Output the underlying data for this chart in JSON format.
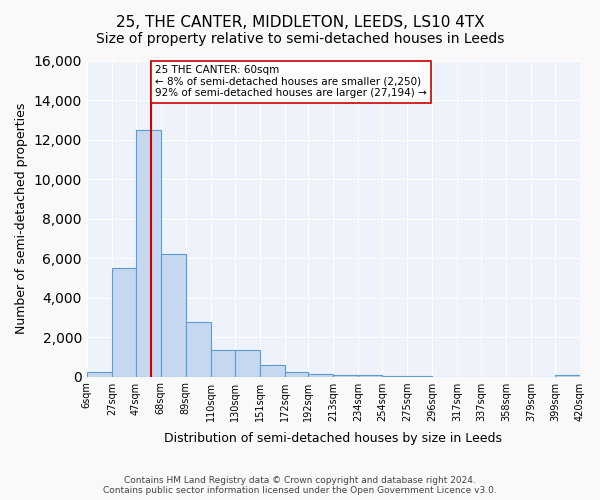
{
  "title": "25, THE CANTER, MIDDLETON, LEEDS, LS10 4TX",
  "subtitle": "Size of property relative to semi-detached houses in Leeds",
  "xlabel": "Distribution of semi-detached houses by size in Leeds",
  "ylabel": "Number of semi-detached properties",
  "footer": "Contains HM Land Registry data © Crown copyright and database right 2024.\nContains public sector information licensed under the Open Government Licence v3.0.",
  "bin_edges": [
    6,
    27,
    47,
    68,
    89,
    110,
    130,
    151,
    172,
    192,
    213,
    234,
    254,
    275,
    296,
    317,
    337,
    358,
    379,
    399,
    420
  ],
  "bar_heights": [
    250,
    5500,
    12500,
    6200,
    2750,
    1350,
    1350,
    600,
    250,
    150,
    100,
    100,
    50,
    50,
    0,
    0,
    0,
    0,
    0,
    100
  ],
  "bar_color": "#c5d8f0",
  "bar_edge_color": "#5b9bd5",
  "property_size": 60,
  "property_label": "25 THE CANTER: 60sqm",
  "pct_smaller": 8,
  "n_smaller": 2250,
  "pct_larger": 92,
  "n_larger": 27194,
  "vline_color": "#cc0000",
  "annotation_box_color": "#ffffff",
  "annotation_box_edge": "#cc0000",
  "ylim": [
    0,
    16000
  ],
  "yticks": [
    0,
    2000,
    4000,
    6000,
    8000,
    10000,
    12000,
    14000,
    16000
  ],
  "background_color": "#eef3fb",
  "grid_color": "#ffffff",
  "fig_background": "#f9f9f9",
  "title_fontsize": 11,
  "subtitle_fontsize": 10,
  "xlabel_fontsize": 9,
  "ylabel_fontsize": 9
}
